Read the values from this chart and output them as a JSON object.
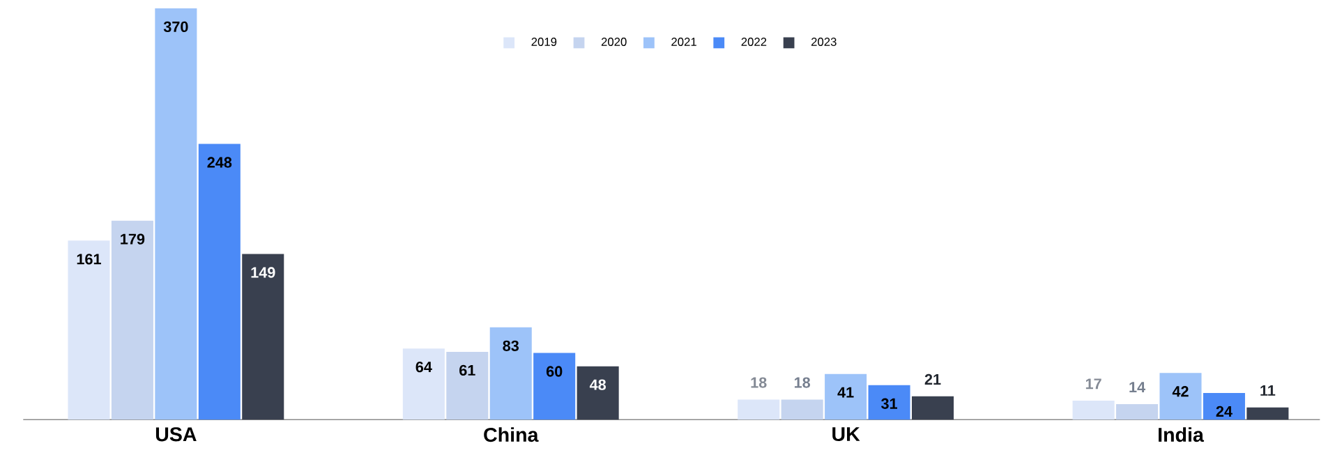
{
  "chart_data": {
    "type": "bar",
    "categories": [
      "USA",
      "China",
      "UK",
      "India"
    ],
    "series": [
      {
        "name": "2019",
        "color": "#dce6f9",
        "values": [
          161,
          64,
          18,
          17
        ]
      },
      {
        "name": "2020",
        "color": "#c5d4ef",
        "values": [
          179,
          61,
          18,
          14
        ]
      },
      {
        "name": "2021",
        "color": "#9dc3f9",
        "values": [
          370,
          83,
          41,
          42
        ]
      },
      {
        "name": "2022",
        "color": "#4b8af7",
        "values": [
          248,
          60,
          31,
          24
        ]
      },
      {
        "name": "2023",
        "color": "#39404f",
        "values": [
          149,
          48,
          21,
          11
        ]
      }
    ],
    "data_labels": true,
    "legend": "top"
  }
}
